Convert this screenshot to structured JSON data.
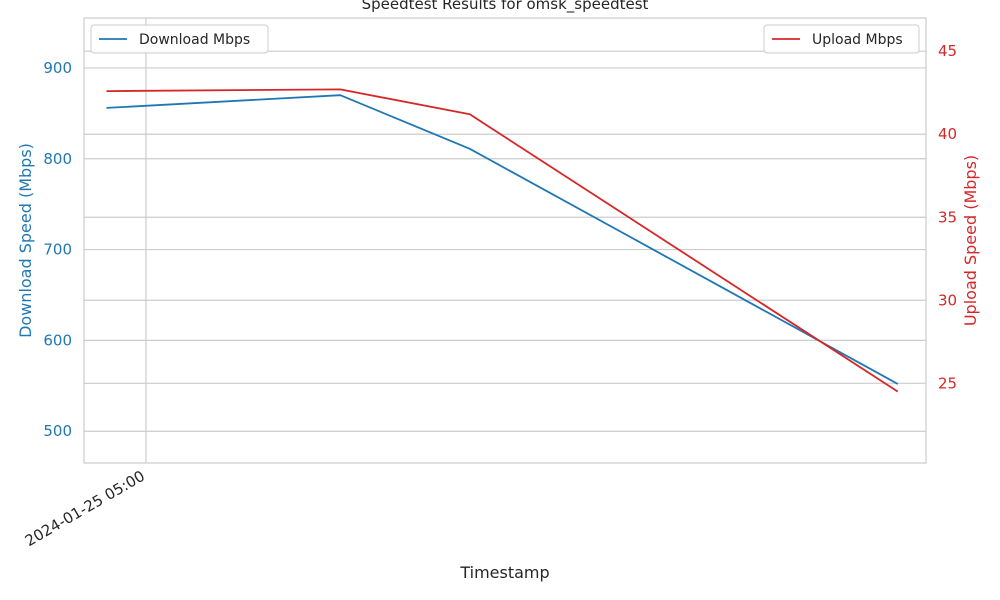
{
  "chart_data": {
    "type": "line",
    "title": "Speedtest Results for omsk_speedtest",
    "xlabel": "Timestamp",
    "x_ticks": [
      {
        "x": "2024-01-25 05:00",
        "label": "2024-01-25 05:00"
      }
    ],
    "x_range": [
      "2024-01-25 04:38",
      "2024-01-25 09:37"
    ],
    "x": [
      "2024-01-25 04:46",
      "2024-01-25 06:09",
      "2024-01-25 06:55",
      "2024-01-25 09:27"
    ],
    "series": [
      {
        "name": "Download Mbps",
        "axis": "left",
        "color": "#1f77b4",
        "values": [
          856,
          870,
          811,
          552
        ]
      },
      {
        "name": "Upload Mbps",
        "axis": "right",
        "color": "#d62728",
        "values": [
          42.6,
          42.7,
          41.2,
          24.5
        ]
      }
    ],
    "left_axis": {
      "label": "Download Speed (Mbps)",
      "color": "#1f77b4",
      "ylim": [
        465,
        955
      ],
      "ticks": [
        500,
        600,
        700,
        800,
        900
      ]
    },
    "right_axis": {
      "label": "Upload Speed (Mbps)",
      "color": "#d62728",
      "ylim": [
        20.2,
        47
      ],
      "ticks": [
        25,
        30,
        35,
        40,
        45
      ]
    },
    "legends": [
      {
        "placement": "upper-left",
        "entries": [
          "Download Mbps"
        ]
      },
      {
        "placement": "upper-right",
        "entries": [
          "Upload Mbps"
        ]
      }
    ],
    "grid": true
  }
}
